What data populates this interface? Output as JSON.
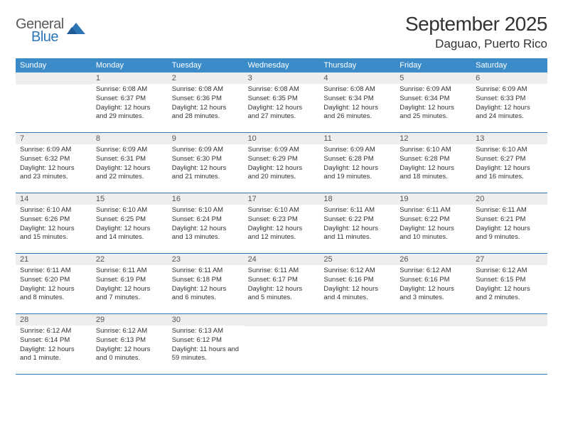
{
  "logo": {
    "general": "General",
    "blue": "Blue"
  },
  "colors": {
    "header_bg": "#3b8bc9",
    "rule": "#2e75b6",
    "daynum_bg": "#eeeeee",
    "text": "#333333",
    "logo_gray": "#5a5a5a",
    "logo_blue": "#2e75b6"
  },
  "title": "September 2025",
  "location": "Daguao, Puerto Rico",
  "weekdays": [
    "Sunday",
    "Monday",
    "Tuesday",
    "Wednesday",
    "Thursday",
    "Friday",
    "Saturday"
  ],
  "weeks": [
    [
      {
        "n": "",
        "sr": "",
        "ss": "",
        "dl": ""
      },
      {
        "n": "1",
        "sr": "Sunrise: 6:08 AM",
        "ss": "Sunset: 6:37 PM",
        "dl": "Daylight: 12 hours and 29 minutes."
      },
      {
        "n": "2",
        "sr": "Sunrise: 6:08 AM",
        "ss": "Sunset: 6:36 PM",
        "dl": "Daylight: 12 hours and 28 minutes."
      },
      {
        "n": "3",
        "sr": "Sunrise: 6:08 AM",
        "ss": "Sunset: 6:35 PM",
        "dl": "Daylight: 12 hours and 27 minutes."
      },
      {
        "n": "4",
        "sr": "Sunrise: 6:08 AM",
        "ss": "Sunset: 6:34 PM",
        "dl": "Daylight: 12 hours and 26 minutes."
      },
      {
        "n": "5",
        "sr": "Sunrise: 6:09 AM",
        "ss": "Sunset: 6:34 PM",
        "dl": "Daylight: 12 hours and 25 minutes."
      },
      {
        "n": "6",
        "sr": "Sunrise: 6:09 AM",
        "ss": "Sunset: 6:33 PM",
        "dl": "Daylight: 12 hours and 24 minutes."
      }
    ],
    [
      {
        "n": "7",
        "sr": "Sunrise: 6:09 AM",
        "ss": "Sunset: 6:32 PM",
        "dl": "Daylight: 12 hours and 23 minutes."
      },
      {
        "n": "8",
        "sr": "Sunrise: 6:09 AM",
        "ss": "Sunset: 6:31 PM",
        "dl": "Daylight: 12 hours and 22 minutes."
      },
      {
        "n": "9",
        "sr": "Sunrise: 6:09 AM",
        "ss": "Sunset: 6:30 PM",
        "dl": "Daylight: 12 hours and 21 minutes."
      },
      {
        "n": "10",
        "sr": "Sunrise: 6:09 AM",
        "ss": "Sunset: 6:29 PM",
        "dl": "Daylight: 12 hours and 20 minutes."
      },
      {
        "n": "11",
        "sr": "Sunrise: 6:09 AM",
        "ss": "Sunset: 6:28 PM",
        "dl": "Daylight: 12 hours and 19 minutes."
      },
      {
        "n": "12",
        "sr": "Sunrise: 6:10 AM",
        "ss": "Sunset: 6:28 PM",
        "dl": "Daylight: 12 hours and 18 minutes."
      },
      {
        "n": "13",
        "sr": "Sunrise: 6:10 AM",
        "ss": "Sunset: 6:27 PM",
        "dl": "Daylight: 12 hours and 16 minutes."
      }
    ],
    [
      {
        "n": "14",
        "sr": "Sunrise: 6:10 AM",
        "ss": "Sunset: 6:26 PM",
        "dl": "Daylight: 12 hours and 15 minutes."
      },
      {
        "n": "15",
        "sr": "Sunrise: 6:10 AM",
        "ss": "Sunset: 6:25 PM",
        "dl": "Daylight: 12 hours and 14 minutes."
      },
      {
        "n": "16",
        "sr": "Sunrise: 6:10 AM",
        "ss": "Sunset: 6:24 PM",
        "dl": "Daylight: 12 hours and 13 minutes."
      },
      {
        "n": "17",
        "sr": "Sunrise: 6:10 AM",
        "ss": "Sunset: 6:23 PM",
        "dl": "Daylight: 12 hours and 12 minutes."
      },
      {
        "n": "18",
        "sr": "Sunrise: 6:11 AM",
        "ss": "Sunset: 6:22 PM",
        "dl": "Daylight: 12 hours and 11 minutes."
      },
      {
        "n": "19",
        "sr": "Sunrise: 6:11 AM",
        "ss": "Sunset: 6:22 PM",
        "dl": "Daylight: 12 hours and 10 minutes."
      },
      {
        "n": "20",
        "sr": "Sunrise: 6:11 AM",
        "ss": "Sunset: 6:21 PM",
        "dl": "Daylight: 12 hours and 9 minutes."
      }
    ],
    [
      {
        "n": "21",
        "sr": "Sunrise: 6:11 AM",
        "ss": "Sunset: 6:20 PM",
        "dl": "Daylight: 12 hours and 8 minutes."
      },
      {
        "n": "22",
        "sr": "Sunrise: 6:11 AM",
        "ss": "Sunset: 6:19 PM",
        "dl": "Daylight: 12 hours and 7 minutes."
      },
      {
        "n": "23",
        "sr": "Sunrise: 6:11 AM",
        "ss": "Sunset: 6:18 PM",
        "dl": "Daylight: 12 hours and 6 minutes."
      },
      {
        "n": "24",
        "sr": "Sunrise: 6:11 AM",
        "ss": "Sunset: 6:17 PM",
        "dl": "Daylight: 12 hours and 5 minutes."
      },
      {
        "n": "25",
        "sr": "Sunrise: 6:12 AM",
        "ss": "Sunset: 6:16 PM",
        "dl": "Daylight: 12 hours and 4 minutes."
      },
      {
        "n": "26",
        "sr": "Sunrise: 6:12 AM",
        "ss": "Sunset: 6:16 PM",
        "dl": "Daylight: 12 hours and 3 minutes."
      },
      {
        "n": "27",
        "sr": "Sunrise: 6:12 AM",
        "ss": "Sunset: 6:15 PM",
        "dl": "Daylight: 12 hours and 2 minutes."
      }
    ],
    [
      {
        "n": "28",
        "sr": "Sunrise: 6:12 AM",
        "ss": "Sunset: 6:14 PM",
        "dl": "Daylight: 12 hours and 1 minute."
      },
      {
        "n": "29",
        "sr": "Sunrise: 6:12 AM",
        "ss": "Sunset: 6:13 PM",
        "dl": "Daylight: 12 hours and 0 minutes."
      },
      {
        "n": "30",
        "sr": "Sunrise: 6:13 AM",
        "ss": "Sunset: 6:12 PM",
        "dl": "Daylight: 11 hours and 59 minutes."
      },
      {
        "n": "",
        "sr": "",
        "ss": "",
        "dl": ""
      },
      {
        "n": "",
        "sr": "",
        "ss": "",
        "dl": ""
      },
      {
        "n": "",
        "sr": "",
        "ss": "",
        "dl": ""
      },
      {
        "n": "",
        "sr": "",
        "ss": "",
        "dl": ""
      }
    ]
  ]
}
